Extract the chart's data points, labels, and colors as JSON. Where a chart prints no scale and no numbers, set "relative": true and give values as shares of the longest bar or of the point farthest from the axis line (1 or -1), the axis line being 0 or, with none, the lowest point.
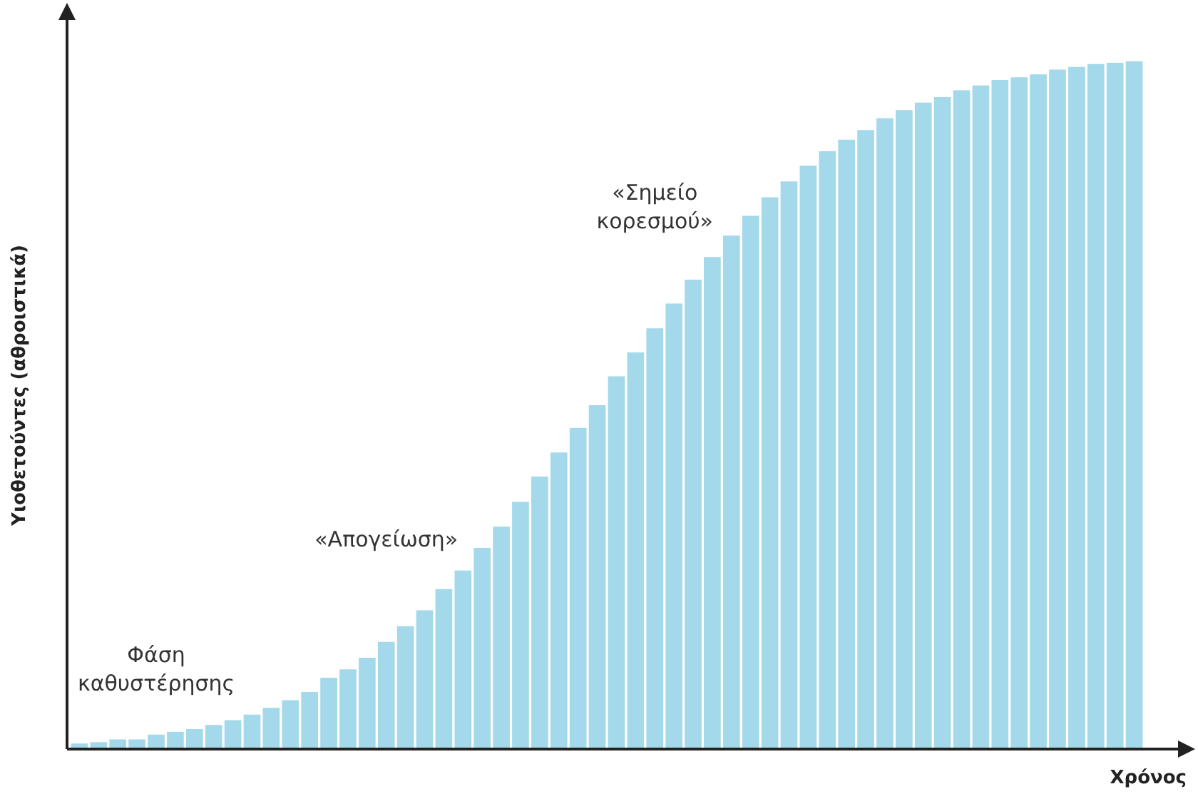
{
  "chart_data": {
    "type": "bar",
    "relative": true,
    "xlabel": "Χρόνος",
    "ylabel": "Υιοθετούντες (αθροιστικά)",
    "annotations": [
      "Φάση\nκαθυστέρησης",
      "«Απογείωση»",
      "«Σημείο\nκορεσμού»"
    ],
    "categories": [
      null,
      null,
      null,
      null,
      null,
      null,
      null,
      null,
      null,
      null,
      null,
      null,
      null,
      null,
      null,
      null,
      null,
      null,
      null,
      null,
      null,
      null,
      null,
      null,
      null,
      null,
      null,
      null,
      null,
      null,
      null,
      null,
      null,
      null,
      null,
      null,
      null,
      null,
      null,
      null,
      null,
      null,
      null,
      null,
      null,
      null,
      null,
      null,
      null,
      null,
      null,
      null,
      null,
      null,
      null,
      null
    ],
    "values": [
      0.006,
      0.008,
      0.012,
      0.012,
      0.019,
      0.023,
      0.027,
      0.033,
      0.04,
      0.048,
      0.058,
      0.069,
      0.081,
      0.102,
      0.114,
      0.131,
      0.154,
      0.177,
      0.2,
      0.231,
      0.258,
      0.291,
      0.322,
      0.358,
      0.395,
      0.43,
      0.466,
      0.499,
      0.541,
      0.576,
      0.611,
      0.647,
      0.682,
      0.715,
      0.746,
      0.775,
      0.802,
      0.825,
      0.848,
      0.869,
      0.886,
      0.9,
      0.917,
      0.929,
      0.94,
      0.948,
      0.958,
      0.965,
      0.973,
      0.977,
      0.981,
      0.988,
      0.992,
      0.996,
      0.998,
      1
    ],
    "color": "#a3d9ea"
  }
}
